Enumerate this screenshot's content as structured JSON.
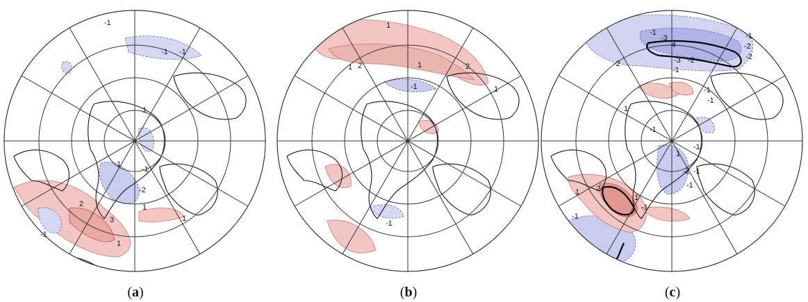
{
  "panels": [
    {
      "caption_open": "(",
      "caption_letter": "a",
      "caption_close": ")",
      "contour_labels": [
        "-1",
        "-1",
        "1",
        "-1",
        "1",
        "2",
        "3",
        "-2",
        "-1",
        "1",
        "1",
        "1",
        "-1"
      ]
    },
    {
      "caption_open": "(",
      "caption_letter": "b",
      "caption_close": ")",
      "contour_labels": [
        "1",
        "1",
        "2",
        "1",
        "2",
        "1",
        "-1",
        "-1"
      ]
    },
    {
      "caption_open": "(",
      "caption_letter": "c",
      "caption_close": ")",
      "contour_labels": [
        "-1",
        "-3",
        "-4",
        "-1",
        "-2",
        "-2",
        "-2",
        "-3",
        "-2",
        "-1",
        "-1",
        "-1",
        "1",
        "-1",
        "-1",
        "1",
        "-1",
        "-1",
        "1",
        "2",
        "-1",
        "1",
        "-1",
        "-2"
      ]
    }
  ],
  "colors": {
    "positive": "#f2c6c2",
    "negative": "#c9cbef",
    "grid": "#333333",
    "coast": "#111111"
  }
}
